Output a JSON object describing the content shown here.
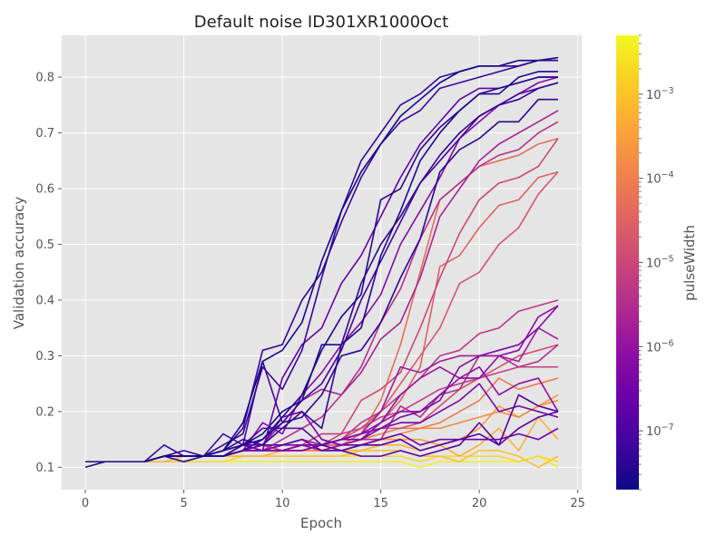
{
  "chart_data": {
    "type": "line",
    "title": "Default noise ID301XR1000Oct",
    "xlabel": "Epoch",
    "ylabel": "Validation accuracy",
    "xlim": [
      -1.2,
      25.2
    ],
    "ylim": [
      0.06,
      0.875
    ],
    "xticks": [
      0,
      5,
      10,
      15,
      20,
      25
    ],
    "yticks": [
      0.1,
      0.2,
      0.3,
      0.4,
      0.5,
      0.6,
      0.7,
      0.8
    ],
    "grid": true,
    "colorbar": {
      "label": "pulseWidth",
      "scale": "log",
      "colormap": "plasma",
      "range": [
        2e-08,
        0.005
      ],
      "major_ticks": [
        1e-07,
        1e-06,
        1e-05,
        0.0001,
        0.001
      ],
      "major_tick_labels": [
        {
          "base": "10",
          "exp": "−7"
        },
        {
          "base": "10",
          "exp": "−6"
        },
        {
          "base": "10",
          "exp": "−5"
        },
        {
          "base": "10",
          "exp": "−4"
        },
        {
          "base": "10",
          "exp": "−3"
        }
      ]
    },
    "series": [
      {
        "pulse": 2.5e-08,
        "y": [
          0.11,
          0.11,
          0.11,
          0.11,
          0.12,
          0.12,
          0.12,
          0.13,
          0.18,
          0.29,
          0.31,
          0.36,
          0.47,
          0.56,
          0.63,
          0.68,
          0.73,
          0.76,
          0.79,
          0.81,
          0.82,
          0.82,
          0.83,
          0.83,
          0.835
        ]
      },
      {
        "pulse": 3e-08,
        "y": [
          0.1,
          0.11,
          0.11,
          0.11,
          0.12,
          0.12,
          0.12,
          0.13,
          0.14,
          0.16,
          0.2,
          0.22,
          0.32,
          0.32,
          0.35,
          0.48,
          0.56,
          0.65,
          0.7,
          0.74,
          0.77,
          0.77,
          0.8,
          0.81,
          0.81
        ]
      },
      {
        "pulse": 3.5e-08,
        "y": [
          0.11,
          0.11,
          0.11,
          0.11,
          0.12,
          0.11,
          0.12,
          0.12,
          0.14,
          0.15,
          0.19,
          0.23,
          0.31,
          0.37,
          0.41,
          0.58,
          0.6,
          0.67,
          0.71,
          0.74,
          0.77,
          0.78,
          0.79,
          0.8,
          0.8
        ]
      },
      {
        "pulse": 4e-08,
        "y": [
          0.11,
          0.11,
          0.11,
          0.11,
          0.12,
          0.12,
          0.12,
          0.12,
          0.13,
          0.15,
          0.18,
          0.19,
          0.23,
          0.3,
          0.31,
          0.36,
          0.44,
          0.51,
          0.63,
          0.67,
          0.69,
          0.72,
          0.72,
          0.76,
          0.76
        ]
      },
      {
        "pulse": 4.5e-08,
        "y": [
          0.11,
          0.11,
          0.11,
          0.11,
          0.12,
          0.12,
          0.12,
          0.13,
          0.15,
          0.14,
          0.17,
          0.2,
          0.17,
          0.32,
          0.43,
          0.5,
          0.55,
          0.61,
          0.66,
          0.7,
          0.73,
          0.75,
          0.76,
          0.78,
          0.79
        ]
      },
      {
        "pulse": 5e-08,
        "y": [
          0.11,
          0.11,
          0.11,
          0.11,
          0.12,
          0.13,
          0.12,
          0.14,
          0.16,
          0.28,
          0.24,
          0.31,
          0.44,
          0.56,
          0.65,
          0.7,
          0.75,
          0.77,
          0.8,
          0.81,
          0.82,
          0.82,
          0.82,
          0.83,
          0.83
        ]
      },
      {
        "pulse": 6e-08,
        "y": [
          0.11,
          0.11,
          0.11,
          0.11,
          0.14,
          0.12,
          0.12,
          0.13,
          0.17,
          0.31,
          0.32,
          0.4,
          0.45,
          0.54,
          0.62,
          0.68,
          0.72,
          0.74,
          0.78,
          0.79,
          0.8,
          0.81,
          0.82,
          0.83,
          0.83
        ]
      },
      {
        "pulse": 8e-08,
        "y": [
          0.11,
          0.11,
          0.11,
          0.11,
          0.12,
          0.12,
          0.12,
          0.16,
          0.14,
          0.29,
          0.18,
          0.22,
          0.25,
          0.31,
          0.4,
          0.47,
          0.54,
          0.61,
          0.65,
          0.69,
          0.73,
          0.75,
          0.77,
          0.78,
          0.79
        ]
      },
      {
        "pulse": 1.2e-07,
        "y": [
          0.11,
          0.11,
          0.11,
          0.11,
          0.12,
          0.12,
          0.12,
          0.13,
          0.14,
          0.17,
          0.17,
          0.17,
          0.14,
          0.13,
          0.14,
          0.14,
          0.15,
          0.13,
          0.14,
          0.15,
          0.16,
          0.14,
          0.23,
          0.21,
          0.2
        ]
      },
      {
        "pulse": 1.5e-07,
        "y": [
          0.11,
          0.11,
          0.11,
          0.11,
          0.12,
          0.12,
          0.12,
          0.13,
          0.14,
          0.14,
          0.14,
          0.15,
          0.13,
          0.13,
          0.12,
          0.12,
          0.13,
          0.12,
          0.13,
          0.14,
          0.18,
          0.14,
          0.17,
          0.19,
          0.2
        ]
      },
      {
        "pulse": 2e-07,
        "y": [
          0.11,
          0.11,
          0.11,
          0.11,
          0.12,
          0.12,
          0.12,
          0.12,
          0.14,
          0.13,
          0.26,
          0.32,
          0.35,
          0.43,
          0.48,
          0.55,
          0.62,
          0.68,
          0.72,
          0.76,
          0.78,
          0.78,
          0.79,
          0.8,
          0.8
        ]
      },
      {
        "pulse": 3e-07,
        "y": [
          0.11,
          0.11,
          0.11,
          0.11,
          0.12,
          0.12,
          0.12,
          0.12,
          0.13,
          0.14,
          0.19,
          0.2,
          0.15,
          0.14,
          0.14,
          0.15,
          0.16,
          0.14,
          0.15,
          0.15,
          0.15,
          0.15,
          0.16,
          0.15,
          0.17
        ]
      },
      {
        "pulse": 4e-07,
        "y": [
          0.11,
          0.11,
          0.11,
          0.11,
          0.12,
          0.12,
          0.12,
          0.12,
          0.13,
          0.13,
          0.13,
          0.13,
          0.14,
          0.15,
          0.15,
          0.17,
          0.18,
          0.18,
          0.2,
          0.22,
          0.25,
          0.2,
          0.21,
          0.2,
          0.19
        ]
      },
      {
        "pulse": 5e-07,
        "y": [
          0.11,
          0.11,
          0.11,
          0.11,
          0.12,
          0.12,
          0.12,
          0.12,
          0.13,
          0.13,
          0.14,
          0.14,
          0.14,
          0.15,
          0.16,
          0.17,
          0.19,
          0.2,
          0.22,
          0.28,
          0.3,
          0.31,
          0.32,
          0.35,
          0.39
        ]
      },
      {
        "pulse": 6e-07,
        "y": [
          0.11,
          0.11,
          0.11,
          0.11,
          0.12,
          0.12,
          0.12,
          0.12,
          0.13,
          0.18,
          0.16,
          0.23,
          0.27,
          0.32,
          0.36,
          0.41,
          0.5,
          0.56,
          0.62,
          0.69,
          0.72,
          0.75,
          0.77,
          0.79,
          0.8
        ]
      },
      {
        "pulse": 8e-07,
        "y": [
          0.11,
          0.11,
          0.11,
          0.11,
          0.12,
          0.12,
          0.12,
          0.12,
          0.13,
          0.13,
          0.13,
          0.14,
          0.14,
          0.15,
          0.16,
          0.18,
          0.2,
          0.2,
          0.23,
          0.26,
          0.26,
          0.3,
          0.31,
          0.37,
          0.39
        ]
      },
      {
        "pulse": 1e-06,
        "y": [
          0.11,
          0.11,
          0.11,
          0.11,
          0.12,
          0.12,
          0.12,
          0.12,
          0.13,
          0.13,
          0.13,
          0.14,
          0.13,
          0.14,
          0.15,
          0.18,
          0.23,
          0.26,
          0.28,
          0.26,
          0.28,
          0.23,
          0.25,
          0.26,
          0.2
        ]
      },
      {
        "pulse": 1.5e-06,
        "y": [
          0.11,
          0.11,
          0.11,
          0.11,
          0.12,
          0.12,
          0.12,
          0.12,
          0.13,
          0.13,
          0.14,
          0.15,
          0.14,
          0.15,
          0.16,
          0.2,
          0.28,
          0.27,
          0.29,
          0.3,
          0.3,
          0.3,
          0.29,
          0.35,
          0.33
        ]
      },
      {
        "pulse": 2e-06,
        "y": [
          0.11,
          0.11,
          0.11,
          0.11,
          0.12,
          0.12,
          0.12,
          0.12,
          0.13,
          0.14,
          0.18,
          0.22,
          0.24,
          0.23,
          0.27,
          0.33,
          0.36,
          0.44,
          0.55,
          0.6,
          0.65,
          0.68,
          0.7,
          0.72,
          0.74
        ]
      },
      {
        "pulse": 3e-06,
        "y": [
          0.11,
          0.11,
          0.11,
          0.11,
          0.12,
          0.12,
          0.12,
          0.12,
          0.13,
          0.14,
          0.13,
          0.14,
          0.13,
          0.14,
          0.15,
          0.15,
          0.21,
          0.19,
          0.23,
          0.24,
          0.3,
          0.3,
          0.28,
          0.29,
          0.32
        ]
      },
      {
        "pulse": 4e-06,
        "y": [
          0.11,
          0.11,
          0.11,
          0.11,
          0.12,
          0.12,
          0.12,
          0.12,
          0.13,
          0.13,
          0.15,
          0.17,
          0.19,
          0.23,
          0.28,
          0.36,
          0.42,
          0.51,
          0.58,
          0.61,
          0.64,
          0.66,
          0.67,
          0.7,
          0.72
        ]
      },
      {
        "pulse": 5e-06,
        "y": [
          0.11,
          0.11,
          0.11,
          0.11,
          0.12,
          0.12,
          0.12,
          0.12,
          0.13,
          0.13,
          0.13,
          0.14,
          0.14,
          0.15,
          0.18,
          0.2,
          0.23,
          0.26,
          0.3,
          0.31,
          0.34,
          0.35,
          0.38,
          0.39,
          0.4
        ]
      },
      {
        "pulse": 7e-06,
        "y": [
          0.11,
          0.11,
          0.11,
          0.11,
          0.12,
          0.12,
          0.12,
          0.12,
          0.13,
          0.13,
          0.14,
          0.14,
          0.16,
          0.16,
          0.17,
          0.19,
          0.2,
          0.22,
          0.24,
          0.25,
          0.26,
          0.27,
          0.28,
          0.28,
          0.28
        ]
      },
      {
        "pulse": 1e-05,
        "y": [
          0.11,
          0.11,
          0.11,
          0.11,
          0.12,
          0.12,
          0.12,
          0.12,
          0.13,
          0.13,
          0.13,
          0.13,
          0.14,
          0.16,
          0.22,
          0.24,
          0.27,
          0.35,
          0.44,
          0.52,
          0.58,
          0.61,
          0.62,
          0.64,
          0.69
        ]
      },
      {
        "pulse": 1.5e-05,
        "y": [
          0.11,
          0.11,
          0.11,
          0.11,
          0.12,
          0.12,
          0.12,
          0.12,
          0.13,
          0.13,
          0.13,
          0.14,
          0.14,
          0.15,
          0.16,
          0.17,
          0.17,
          0.18,
          0.21,
          0.24,
          0.26,
          0.28,
          0.3,
          0.31,
          0.32
        ]
      },
      {
        "pulse": 2e-05,
        "y": [
          0.11,
          0.11,
          0.11,
          0.11,
          0.12,
          0.12,
          0.12,
          0.12,
          0.13,
          0.13,
          0.13,
          0.14,
          0.14,
          0.15,
          0.17,
          0.2,
          0.25,
          0.3,
          0.35,
          0.43,
          0.45,
          0.5,
          0.53,
          0.59,
          0.63
        ]
      },
      {
        "pulse": 3e-05,
        "y": [
          0.11,
          0.11,
          0.11,
          0.11,
          0.12,
          0.12,
          0.12,
          0.12,
          0.13,
          0.13,
          0.13,
          0.13,
          0.14,
          0.14,
          0.15,
          0.18,
          0.22,
          0.28,
          0.46,
          0.48,
          0.53,
          0.57,
          0.58,
          0.62,
          0.63
        ]
      },
      {
        "pulse": 5e-05,
        "y": [
          0.11,
          0.11,
          0.11,
          0.11,
          0.12,
          0.12,
          0.12,
          0.12,
          0.13,
          0.13,
          0.13,
          0.13,
          0.14,
          0.14,
          0.16,
          0.22,
          0.32,
          0.45,
          0.58,
          0.61,
          0.64,
          0.65,
          0.66,
          0.68,
          0.69
        ]
      },
      {
        "pulse": 8e-05,
        "y": [
          0.11,
          0.11,
          0.11,
          0.11,
          0.12,
          0.12,
          0.12,
          0.12,
          0.13,
          0.13,
          0.13,
          0.13,
          0.14,
          0.14,
          0.15,
          0.16,
          0.17,
          0.17,
          0.18,
          0.2,
          0.22,
          0.26,
          0.24,
          0.25,
          0.26
        ]
      },
      {
        "pulse": 0.00015,
        "y": [
          0.11,
          0.11,
          0.11,
          0.11,
          0.12,
          0.12,
          0.12,
          0.12,
          0.13,
          0.13,
          0.13,
          0.13,
          0.13,
          0.14,
          0.14,
          0.15,
          0.16,
          0.17,
          0.17,
          0.18,
          0.19,
          0.2,
          0.19,
          0.21,
          0.22
        ]
      },
      {
        "pulse": 0.0003,
        "y": [
          0.11,
          0.11,
          0.11,
          0.11,
          0.12,
          0.12,
          0.12,
          0.12,
          0.13,
          0.13,
          0.13,
          0.13,
          0.13,
          0.13,
          0.14,
          0.15,
          0.15,
          0.15,
          0.14,
          0.15,
          0.17,
          0.21,
          0.19,
          0.21,
          0.23
        ]
      },
      {
        "pulse": 0.0006,
        "y": [
          0.11,
          0.11,
          0.11,
          0.11,
          0.11,
          0.12,
          0.12,
          0.12,
          0.12,
          0.12,
          0.13,
          0.13,
          0.13,
          0.13,
          0.13,
          0.14,
          0.14,
          0.13,
          0.14,
          0.12,
          0.14,
          0.17,
          0.13,
          0.19,
          0.15
        ]
      },
      {
        "pulse": 0.001,
        "y": [
          0.11,
          0.11,
          0.11,
          0.11,
          0.11,
          0.11,
          0.12,
          0.12,
          0.12,
          0.12,
          0.12,
          0.12,
          0.12,
          0.12,
          0.13,
          0.13,
          0.13,
          0.12,
          0.12,
          0.11,
          0.13,
          0.13,
          0.12,
          0.1,
          0.12
        ]
      },
      {
        "pulse": 0.002,
        "y": [
          0.11,
          0.11,
          0.11,
          0.11,
          0.11,
          0.11,
          0.11,
          0.11,
          0.12,
          0.12,
          0.12,
          0.12,
          0.12,
          0.12,
          0.12,
          0.12,
          0.12,
          0.11,
          0.12,
          0.12,
          0.12,
          0.12,
          0.11,
          0.12,
          0.11
        ]
      },
      {
        "pulse": 0.004,
        "y": [
          0.11,
          0.11,
          0.11,
          0.11,
          0.11,
          0.11,
          0.11,
          0.11,
          0.11,
          0.11,
          0.11,
          0.11,
          0.11,
          0.11,
          0.11,
          0.11,
          0.11,
          0.1,
          0.11,
          0.11,
          0.11,
          0.11,
          0.11,
          0.12,
          0.1
        ]
      }
    ]
  }
}
